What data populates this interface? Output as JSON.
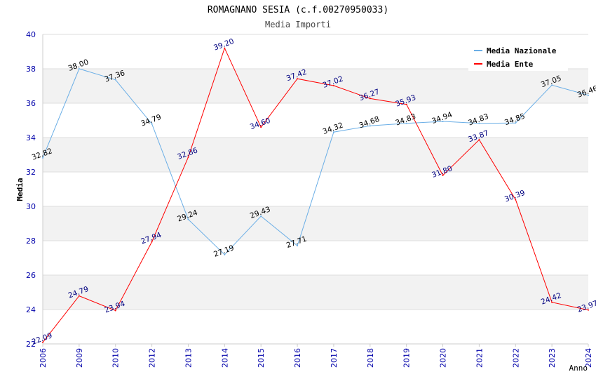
{
  "chart_data": {
    "type": "line",
    "title": "ROMAGNANO SESIA (c.f.00270950033)",
    "subtitle": "Media Importi",
    "xlabel": "Anno",
    "ylabel": "Media",
    "ylim": [
      22,
      40
    ],
    "yticks": [
      22,
      24,
      26,
      28,
      30,
      32,
      34,
      36,
      38,
      40
    ],
    "categories": [
      "2006",
      "2009",
      "2010",
      "2012",
      "2013",
      "2014",
      "2015",
      "2016",
      "2017",
      "2018",
      "2019",
      "2020",
      "2021",
      "2022",
      "2023",
      "2024"
    ],
    "legend_position": "top-right",
    "series": [
      {
        "name": "Media Nazionale",
        "color": "#6aaee6",
        "label_color": "#000000",
        "values": [
          32.82,
          38.0,
          37.36,
          34.79,
          29.24,
          27.19,
          29.43,
          27.71,
          34.32,
          34.68,
          34.83,
          34.94,
          34.83,
          34.85,
          37.05,
          36.46
        ],
        "labels": [
          "32.82",
          "38.00",
          "37.36",
          "34.79",
          "29.24",
          "27.19",
          "29.43",
          "27.71",
          "34.32",
          "34.68",
          "34.83",
          "34.94",
          "34.83",
          "34.85",
          "37.05",
          "36.46"
        ]
      },
      {
        "name": "Media Ente",
        "color": "#ff0000",
        "label_color": "#000080",
        "values": [
          22.09,
          24.79,
          23.94,
          27.94,
          32.86,
          39.2,
          34.6,
          37.42,
          37.02,
          36.27,
          35.93,
          31.8,
          33.87,
          30.39,
          24.42,
          23.97
        ],
        "labels": [
          "22.09",
          "24.79",
          "23.94",
          "27.94",
          "32.86",
          "39.20",
          "34.60",
          "37.42",
          "37.02",
          "36.27",
          "35.93",
          "31.80",
          "33.87",
          "30.39",
          "24.42",
          "23.97"
        ]
      }
    ]
  }
}
